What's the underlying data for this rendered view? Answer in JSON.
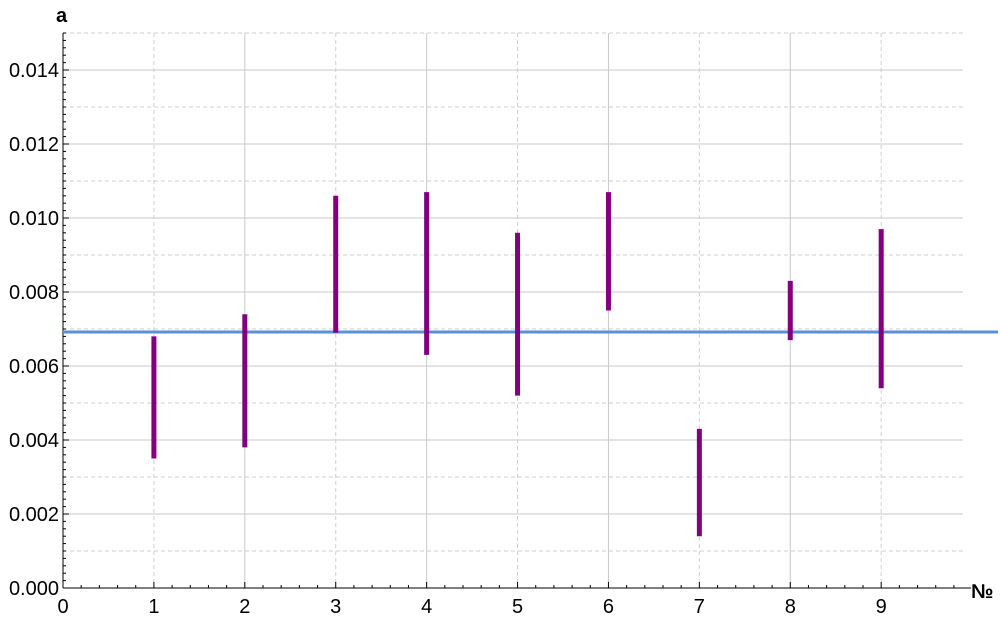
{
  "chart_data": {
    "type": "errorbar",
    "xlabel": "№",
    "ylabel": "a",
    "xlim": [
      0,
      9.9
    ],
    "ylim": [
      0,
      0.015
    ],
    "x_ticks": [
      "0",
      "1",
      "2",
      "3",
      "4",
      "5",
      "6",
      "7",
      "8",
      "9"
    ],
    "y_ticks": [
      "0.000",
      "0.002",
      "0.004",
      "0.006",
      "0.008",
      "0.010",
      "0.012",
      "0.014"
    ],
    "grid": true,
    "intervals": [
      {
        "x": 1,
        "low": 0.0035,
        "high": 0.0068
      },
      {
        "x": 2,
        "low": 0.0038,
        "high": 0.0074
      },
      {
        "x": 3,
        "low": 0.0069,
        "high": 0.0106
      },
      {
        "x": 4,
        "low": 0.0063,
        "high": 0.0107
      },
      {
        "x": 5,
        "low": 0.0052,
        "high": 0.0096
      },
      {
        "x": 6,
        "low": 0.0075,
        "high": 0.0107
      },
      {
        "x": 7,
        "low": 0.0014,
        "high": 0.0043
      },
      {
        "x": 8,
        "low": 0.0067,
        "high": 0.0083
      },
      {
        "x": 9,
        "low": 0.0054,
        "high": 0.0097
      }
    ],
    "reference_line": 0.00692,
    "colors": {
      "interval": "#800080",
      "reference": "#5b8fd6"
    }
  }
}
